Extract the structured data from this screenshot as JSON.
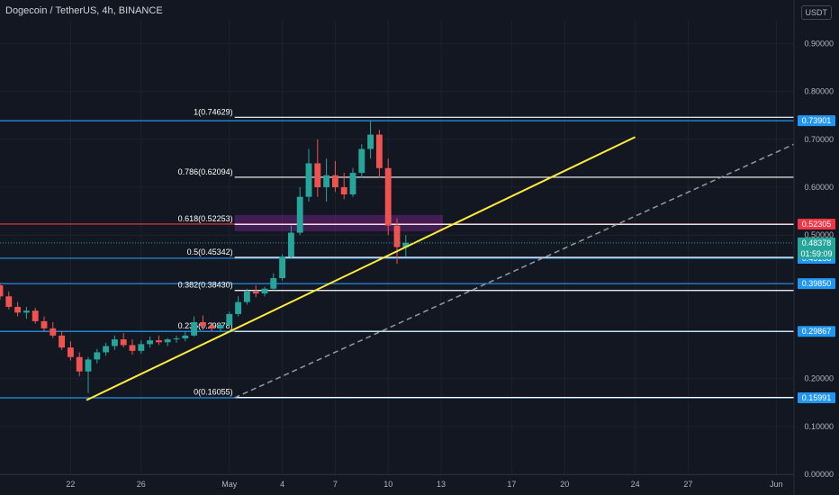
{
  "header": {
    "title": "Dogecoin / TetherUS, 4h, BINANCE",
    "currency_badge": "USDT"
  },
  "colors": {
    "background": "#131722",
    "grid": "#1e222d",
    "up": "#26a69a",
    "down": "#ef5350",
    "blue_line": "#2196f3",
    "white_line": "#ffffff",
    "red_line": "#f23645",
    "trend": "#ffeb3b",
    "projection": "#9598a1",
    "zone": "#9c27b0"
  },
  "chart_data": {
    "type": "candlestick",
    "symbol": "Dogecoin / TetherUS",
    "interval": "4h",
    "exchange": "BINANCE",
    "y_axis": {
      "unit": "USDT",
      "ticks": [
        "0.90000",
        "0.80000",
        "0.70000",
        "0.60000",
        "0.50000",
        "0.40000",
        "0.30000",
        "0.20000",
        "0.10000",
        "0.00000"
      ],
      "tick_values": [
        0.9,
        0.8,
        0.7,
        0.6,
        0.5,
        0.4,
        0.3,
        0.2,
        0.1,
        0.0
      ],
      "range": [
        0.0,
        0.95
      ]
    },
    "x_axis": {
      "range_days": [
        18,
        63
      ],
      "ticks": [
        {
          "label": "22",
          "day": 22
        },
        {
          "label": "26",
          "day": 26
        },
        {
          "label": "May",
          "day": 31
        },
        {
          "label": "4",
          "day": 34
        },
        {
          "label": "7",
          "day": 37
        },
        {
          "label": "10",
          "day": 40
        },
        {
          "label": "13",
          "day": 43
        },
        {
          "label": "17",
          "day": 47
        },
        {
          "label": "20",
          "day": 50
        },
        {
          "label": "24",
          "day": 54
        },
        {
          "label": "27",
          "day": 57
        },
        {
          "label": "Jun",
          "day": 62
        }
      ]
    },
    "fib_levels": [
      {
        "label": "1(0.74629)",
        "value": 0.74629
      },
      {
        "label": "0.786(0.62094)",
        "value": 0.62094
      },
      {
        "label": "0.618(0.52253)",
        "value": 0.52253
      },
      {
        "label": "0.5(0.45342)",
        "value": 0.45342
      },
      {
        "label": "0.382(0.38430)",
        "value": 0.3843
      },
      {
        "label": "0.236(0.29878)",
        "value": 0.29878
      },
      {
        "label": "0(0.16055)",
        "value": 0.16055
      }
    ],
    "horizontal_lines": [
      {
        "value": 0.73901,
        "color": "blue",
        "label": "0.73901"
      },
      {
        "value": 0.52305,
        "color": "red",
        "label": "0.52305"
      },
      {
        "value": 0.45158,
        "color": "blue",
        "label": "0.45158"
      },
      {
        "value": 0.3985,
        "color": "blue",
        "label": "0.39850"
      },
      {
        "value": 0.29867,
        "color": "blue",
        "label": "0.29867"
      },
      {
        "value": 0.15991,
        "color": "blue",
        "label": "0.15991"
      }
    ],
    "current_price": {
      "value": 0.48378,
      "label": "0.48378",
      "countdown": "01:59:09"
    },
    "trend_line": {
      "start": [
        22.9,
        0.155
      ],
      "end": [
        54,
        0.705
      ]
    },
    "projection_line": {
      "start": [
        31.3,
        0.16
      ],
      "end": [
        63,
        0.69
      ]
    },
    "zone": {
      "x_range": [
        31.3,
        43.1
      ],
      "y_range": [
        0.508,
        0.542
      ]
    },
    "candles": [
      [
        18.0,
        0.395,
        0.4,
        0.365,
        0.372
      ],
      [
        18.5,
        0.372,
        0.382,
        0.345,
        0.35
      ],
      [
        19.0,
        0.35,
        0.36,
        0.33,
        0.338
      ],
      [
        19.5,
        0.338,
        0.35,
        0.325,
        0.342
      ],
      [
        20.0,
        0.342,
        0.348,
        0.315,
        0.32
      ],
      [
        20.5,
        0.32,
        0.33,
        0.298,
        0.305
      ],
      [
        21.0,
        0.305,
        0.318,
        0.285,
        0.29
      ],
      [
        21.5,
        0.29,
        0.3,
        0.26,
        0.265
      ],
      [
        22.0,
        0.265,
        0.278,
        0.238,
        0.245
      ],
      [
        22.5,
        0.245,
        0.255,
        0.205,
        0.215
      ],
      [
        23.0,
        0.215,
        0.245,
        0.17,
        0.24
      ],
      [
        23.5,
        0.24,
        0.262,
        0.232,
        0.255
      ],
      [
        24.0,
        0.255,
        0.275,
        0.248,
        0.268
      ],
      [
        24.5,
        0.268,
        0.29,
        0.26,
        0.282
      ],
      [
        25.0,
        0.282,
        0.295,
        0.265,
        0.27
      ],
      [
        25.5,
        0.27,
        0.282,
        0.25,
        0.258
      ],
      [
        26.0,
        0.258,
        0.28,
        0.252,
        0.272
      ],
      [
        26.5,
        0.272,
        0.288,
        0.265,
        0.28
      ],
      [
        27.0,
        0.28,
        0.29,
        0.27,
        0.276
      ],
      [
        27.5,
        0.276,
        0.285,
        0.268,
        0.282
      ],
      [
        28.0,
        0.282,
        0.29,
        0.275,
        0.284
      ],
      [
        28.5,
        0.284,
        0.298,
        0.278,
        0.29
      ],
      [
        29.0,
        0.29,
        0.33,
        0.288,
        0.318
      ],
      [
        29.5,
        0.318,
        0.332,
        0.302,
        0.31
      ],
      [
        30.0,
        0.31,
        0.318,
        0.298,
        0.305
      ],
      [
        30.5,
        0.305,
        0.315,
        0.298,
        0.312
      ],
      [
        31.0,
        0.312,
        0.34,
        0.308,
        0.335
      ],
      [
        31.5,
        0.335,
        0.372,
        0.33,
        0.36
      ],
      [
        32.0,
        0.36,
        0.388,
        0.355,
        0.382
      ],
      [
        32.5,
        0.382,
        0.395,
        0.37,
        0.378
      ],
      [
        33.0,
        0.378,
        0.392,
        0.372,
        0.388
      ],
      [
        33.5,
        0.388,
        0.42,
        0.385,
        0.41
      ],
      [
        34.0,
        0.41,
        0.46,
        0.405,
        0.455
      ],
      [
        34.5,
        0.455,
        0.52,
        0.45,
        0.505
      ],
      [
        35.0,
        0.505,
        0.6,
        0.5,
        0.58
      ],
      [
        35.5,
        0.58,
        0.68,
        0.57,
        0.65
      ],
      [
        36.0,
        0.65,
        0.7,
        0.58,
        0.6
      ],
      [
        36.5,
        0.6,
        0.66,
        0.57,
        0.625
      ],
      [
        37.0,
        0.625,
        0.655,
        0.59,
        0.6
      ],
      [
        37.5,
        0.6,
        0.63,
        0.575,
        0.585
      ],
      [
        38.0,
        0.585,
        0.64,
        0.58,
        0.63
      ],
      [
        38.5,
        0.63,
        0.69,
        0.62,
        0.68
      ],
      [
        39.0,
        0.68,
        0.74,
        0.66,
        0.71
      ],
      [
        39.5,
        0.71,
        0.72,
        0.62,
        0.64
      ],
      [
        40.0,
        0.64,
        0.66,
        0.5,
        0.52
      ],
      [
        40.5,
        0.52,
        0.535,
        0.44,
        0.475
      ],
      [
        41.0,
        0.475,
        0.5,
        0.455,
        0.484
      ]
    ]
  }
}
